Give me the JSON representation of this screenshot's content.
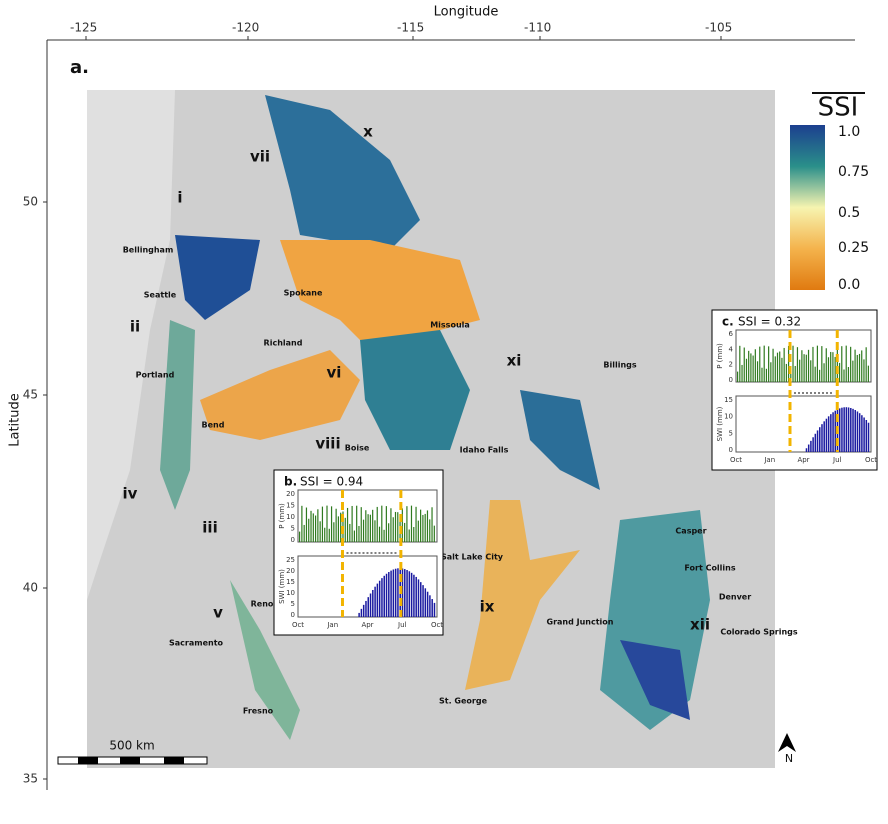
{
  "axes": {
    "x_title": "Longitude",
    "x_ticks": [
      -125,
      -120,
      -115,
      -110,
      -105
    ],
    "y_title": "Latitude",
    "y_ticks": [
      50,
      45,
      40,
      35
    ]
  },
  "panel_label": "a.",
  "legend": {
    "title": "SSI",
    "ticks": [
      "1.0",
      "0.75",
      "0.5",
      "0.25",
      "0.0"
    ]
  },
  "regions": [
    "i",
    "ii",
    "iii",
    "iv",
    "v",
    "vi",
    "vii",
    "viii",
    "ix",
    "x",
    "xi",
    "xii"
  ],
  "cities": [
    "Bellingham",
    "Seattle",
    "Spokane",
    "Missoula",
    "Richland",
    "Portland",
    "Bend",
    "Boise",
    "Idaho Falls",
    "Billings",
    "Casper",
    "Salt Lake City",
    "Fort Collins",
    "Denver",
    "Grand Junction",
    "Colorado Springs",
    "Reno",
    "Sacramento",
    "St. George",
    "Fresno"
  ],
  "insets": [
    {
      "label": "b.",
      "title": "SSI = 0.94",
      "p_axis": "P (mm)",
      "p_ticks": [
        20,
        15,
        10,
        5,
        0
      ],
      "swi_axis": "SWI (mm)",
      "swi_ticks": [
        25,
        20,
        15,
        10,
        5,
        0
      ],
      "months": [
        "Oct",
        "Jan",
        "Apr",
        "Jul",
        "Oct"
      ]
    },
    {
      "label": "c.",
      "title": "SSI = 0.32",
      "p_axis": "P (mm)",
      "p_ticks": [
        6,
        4,
        2,
        0
      ],
      "swi_axis": "SWI (mm)",
      "swi_ticks": [
        15,
        10,
        5,
        0
      ],
      "months": [
        "Oct",
        "Jan",
        "Apr",
        "Jul",
        "Oct"
      ]
    }
  ],
  "scale_bar": "500 km",
  "north": "N"
}
